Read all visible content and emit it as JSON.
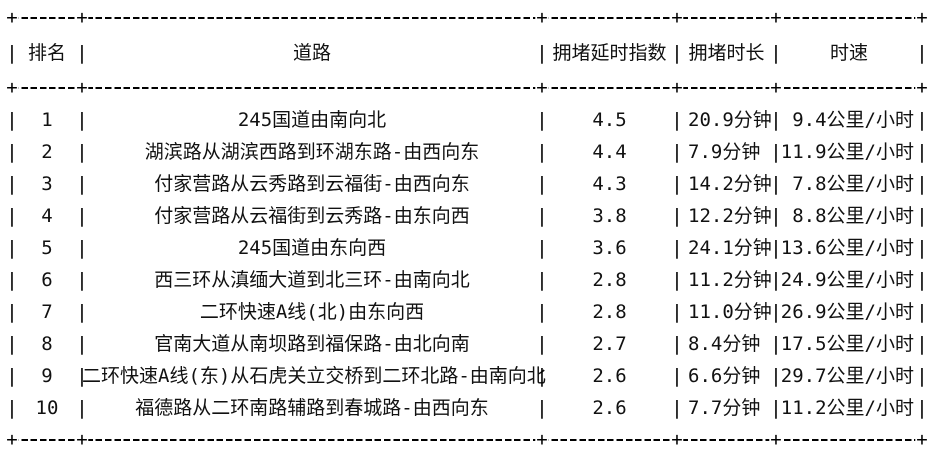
{
  "chart_data": {
    "type": "table",
    "columns": [
      "排名",
      "道路",
      "拥堵延时指数",
      "拥堵时长",
      "时速"
    ],
    "rows": [
      {
        "rank": "1",
        "road": "245国道由南向北",
        "index": "4.5",
        "duration": "20.9分钟",
        "speed": "9.4公里/小时"
      },
      {
        "rank": "2",
        "road": "湖滨路从湖滨西路到环湖东路-由西向东",
        "index": "4.4",
        "duration": "7.9分钟",
        "speed": "11.9公里/小时"
      },
      {
        "rank": "3",
        "road": "付家营路从云秀路到云福街-由西向东",
        "index": "4.3",
        "duration": "14.2分钟",
        "speed": "7.8公里/小时"
      },
      {
        "rank": "4",
        "road": "付家营路从云福街到云秀路-由东向西",
        "index": "3.8",
        "duration": "12.2分钟",
        "speed": "8.8公里/小时"
      },
      {
        "rank": "5",
        "road": "245国道由东向西",
        "index": "3.6",
        "duration": "24.1分钟",
        "speed": "13.6公里/小时"
      },
      {
        "rank": "6",
        "road": "西三环从滇缅大道到北三环-由南向北",
        "index": "2.8",
        "duration": "11.2分钟",
        "speed": "24.9公里/小时"
      },
      {
        "rank": "7",
        "road": "二环快速A线(北)由东向西",
        "index": "2.8",
        "duration": "11.0分钟",
        "speed": "26.9公里/小时"
      },
      {
        "rank": "8",
        "road": "官南大道从南坝路到福保路-由北向南",
        "index": "2.7",
        "duration": "8.4分钟",
        "speed": "17.5公里/小时"
      },
      {
        "rank": "9",
        "road": "二环快速A线(东)从石虎关立交桥到二环北路-由南向北",
        "index": "2.6",
        "duration": "6.6分钟",
        "speed": "29.7公里/小时"
      },
      {
        "rank": "10",
        "road": "福德路从二环南路辅路到春城路-由西向东",
        "index": "2.6",
        "duration": "7.7分钟",
        "speed": "11.2公里/小时"
      }
    ]
  }
}
